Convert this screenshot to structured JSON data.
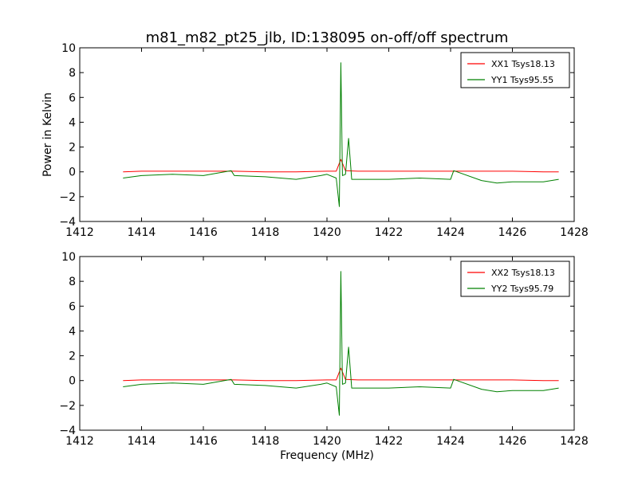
{
  "figure": {
    "title": "m81_m82_pt25_jlb, ID:138095 on-off/off spectrum"
  },
  "chart_data": [
    {
      "type": "line",
      "xlabel": "",
      "ylabel": "Power in Kelvin",
      "xlim": [
        1412,
        1428
      ],
      "ylim": [
        -4,
        10
      ],
      "xticks": [
        "1412",
        "1414",
        "1416",
        "1418",
        "1420",
        "1422",
        "1424",
        "1426",
        "1428"
      ],
      "yticks": [
        "−4",
        "−2",
        "0",
        "2",
        "4",
        "6",
        "8",
        "10"
      ],
      "legend": "top-right",
      "grid": false,
      "series": [
        {
          "name": "XX1 Tsys18.13",
          "color": "#ff0000",
          "x": [
            1413.4,
            1414.0,
            1415.0,
            1416.0,
            1417.0,
            1418.0,
            1419.0,
            1420.0,
            1420.3,
            1420.45,
            1420.6,
            1421.0,
            1422.0,
            1423.0,
            1424.0,
            1425.0,
            1426.0,
            1427.0,
            1427.5
          ],
          "y": [
            0.0,
            0.05,
            0.05,
            0.05,
            0.05,
            0.0,
            0.0,
            0.05,
            0.05,
            1.0,
            0.1,
            0.05,
            0.05,
            0.05,
            0.05,
            0.05,
            0.05,
            0.0,
            0.0
          ]
        },
        {
          "name": "YY1 Tsys95.55",
          "color": "#008000",
          "x": [
            1413.4,
            1414.0,
            1415.0,
            1416.0,
            1416.9,
            1417.0,
            1418.0,
            1419.0,
            1419.8,
            1420.0,
            1420.3,
            1420.4,
            1420.45,
            1420.5,
            1420.6,
            1420.7,
            1420.8,
            1421.0,
            1422.0,
            1423.0,
            1424.0,
            1424.1,
            1425.0,
            1425.5,
            1426.0,
            1427.0,
            1427.5
          ],
          "y": [
            -0.5,
            -0.3,
            -0.2,
            -0.3,
            0.1,
            -0.3,
            -0.4,
            -0.6,
            -0.3,
            -0.2,
            -0.5,
            -2.8,
            8.8,
            -0.3,
            -0.2,
            2.7,
            -0.6,
            -0.6,
            -0.6,
            -0.5,
            -0.6,
            0.1,
            -0.7,
            -0.9,
            -0.8,
            -0.8,
            -0.6
          ]
        }
      ]
    },
    {
      "type": "line",
      "xlabel": "Frequency (MHz)",
      "ylabel": "",
      "xlim": [
        1412,
        1428
      ],
      "ylim": [
        -4,
        10
      ],
      "xticks": [
        "1412",
        "1414",
        "1416",
        "1418",
        "1420",
        "1422",
        "1424",
        "1426",
        "1428"
      ],
      "yticks": [
        "−4",
        "−2",
        "0",
        "2",
        "4",
        "6",
        "8",
        "10"
      ],
      "legend": "top-right",
      "grid": false,
      "series": [
        {
          "name": "XX2 Tsys18.13",
          "color": "#ff0000",
          "x": [
            1413.4,
            1414.0,
            1415.0,
            1416.0,
            1417.0,
            1418.0,
            1419.0,
            1420.0,
            1420.3,
            1420.45,
            1420.6,
            1421.0,
            1422.0,
            1423.0,
            1424.0,
            1425.0,
            1426.0,
            1427.0,
            1427.5
          ],
          "y": [
            0.0,
            0.05,
            0.05,
            0.05,
            0.05,
            0.0,
            0.0,
            0.05,
            0.05,
            1.0,
            0.1,
            0.05,
            0.05,
            0.05,
            0.05,
            0.05,
            0.05,
            0.0,
            0.0
          ]
        },
        {
          "name": "YY2 Tsys95.79",
          "color": "#008000",
          "x": [
            1413.4,
            1414.0,
            1415.0,
            1416.0,
            1416.9,
            1417.0,
            1418.0,
            1419.0,
            1419.8,
            1420.0,
            1420.3,
            1420.4,
            1420.45,
            1420.5,
            1420.6,
            1420.7,
            1420.8,
            1421.0,
            1422.0,
            1423.0,
            1424.0,
            1424.1,
            1425.0,
            1425.5,
            1426.0,
            1427.0,
            1427.5
          ],
          "y": [
            -0.5,
            -0.3,
            -0.2,
            -0.3,
            0.1,
            -0.3,
            -0.4,
            -0.6,
            -0.3,
            -0.2,
            -0.5,
            -2.8,
            8.8,
            -0.3,
            -0.2,
            2.7,
            -0.6,
            -0.6,
            -0.6,
            -0.5,
            -0.6,
            0.1,
            -0.7,
            -0.9,
            -0.8,
            -0.8,
            -0.6
          ]
        }
      ]
    }
  ]
}
